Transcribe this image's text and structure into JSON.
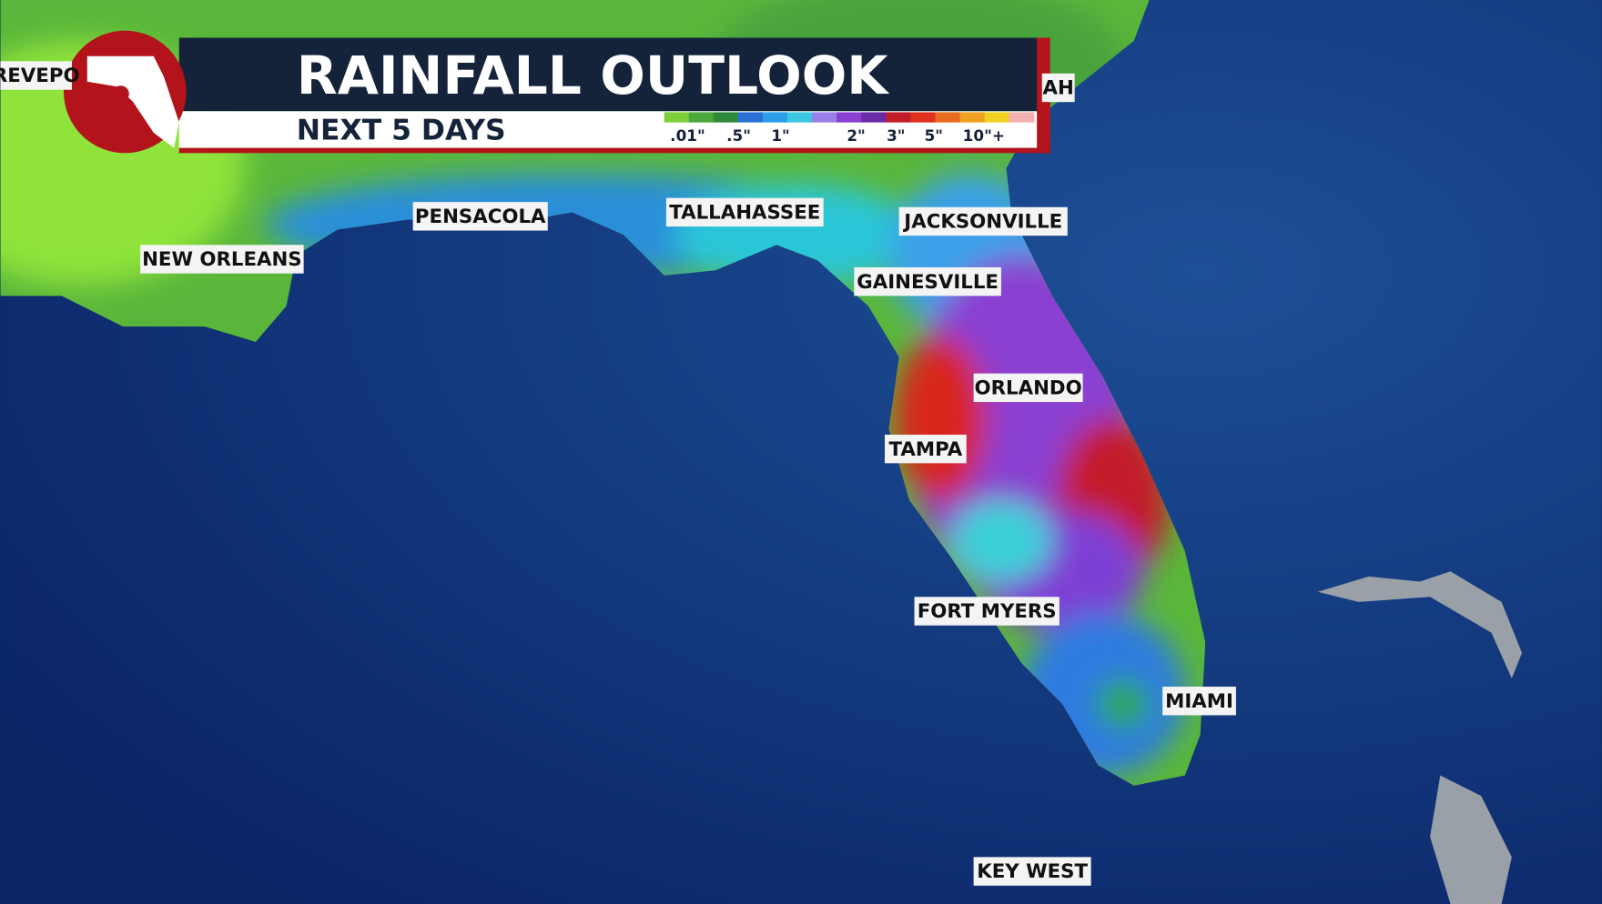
{
  "header": {
    "title": "RAINFALL OUTLOOK",
    "subtitle": "NEXT 5 DAYS"
  },
  "legend": {
    "labels": [
      ".01\"",
      ".5\"",
      "1\"",
      "2\"",
      "3\"",
      "5\"",
      "10\"+"
    ]
  },
  "cities": [
    {
      "label": "REVEPO"
    },
    {
      "label": "AH"
    },
    {
      "label": "PENSACOLA"
    },
    {
      "label": "TALLAHASSEE"
    },
    {
      "label": "JACKSONVILLE"
    },
    {
      "label": "NEW ORLEANS"
    },
    {
      "label": "GAINESVILLE"
    },
    {
      "label": "ORLANDO"
    },
    {
      "label": "TAMPA"
    },
    {
      "label": "FORT MYERS"
    },
    {
      "label": "MIAMI"
    },
    {
      "label": "KEY WEST"
    }
  ]
}
